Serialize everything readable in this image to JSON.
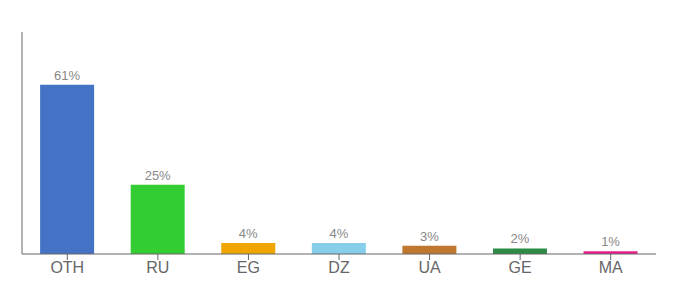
{
  "chart_data": {
    "type": "bar",
    "categories": [
      "OTH",
      "RU",
      "EG",
      "DZ",
      "UA",
      "GE",
      "MA"
    ],
    "values": [
      61,
      25,
      4,
      4,
      3,
      2,
      1
    ],
    "value_labels": [
      "61%",
      "25%",
      "4%",
      "4%",
      "3%",
      "2%",
      "1%"
    ],
    "colors": [
      "#4472c4",
      "#33cc33",
      "#f0a500",
      "#87ceeb",
      "#c07830",
      "#2e8b44",
      "#e91e8c"
    ],
    "ylim": [
      0,
      80
    ],
    "grid": false,
    "data_labels": true,
    "tick_labels": "x"
  }
}
